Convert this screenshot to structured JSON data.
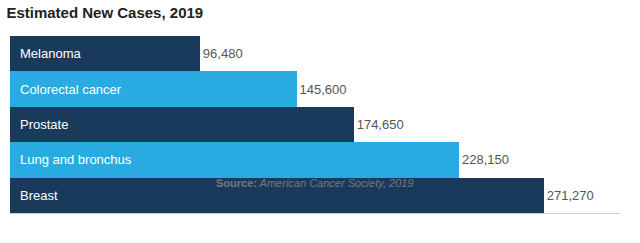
{
  "chart_data": {
    "type": "bar",
    "orientation": "horizontal",
    "title": "Estimated New Cases, 2019",
    "categories": [
      "Breast",
      "Lung and bronchus",
      "Prostate",
      "Colorectal cancer",
      "Melanoma"
    ],
    "values": [
      271270,
      228150,
      174650,
      145600,
      96480
    ],
    "value_labels": [
      "271,270",
      "228,150",
      "174,650",
      "145,600",
      "96,480"
    ],
    "data_labels": true,
    "colors": [
      "#1a3a5c",
      "#29abe2",
      "#1a3a5c",
      "#29abe2",
      "#1a3a5c"
    ],
    "xlim": [
      0,
      310000
    ],
    "xticks": [],
    "tick_labels": false,
    "grid": false,
    "source": {
      "bold": "Source:",
      "italic": " American Cancer Society, 2019"
    }
  }
}
